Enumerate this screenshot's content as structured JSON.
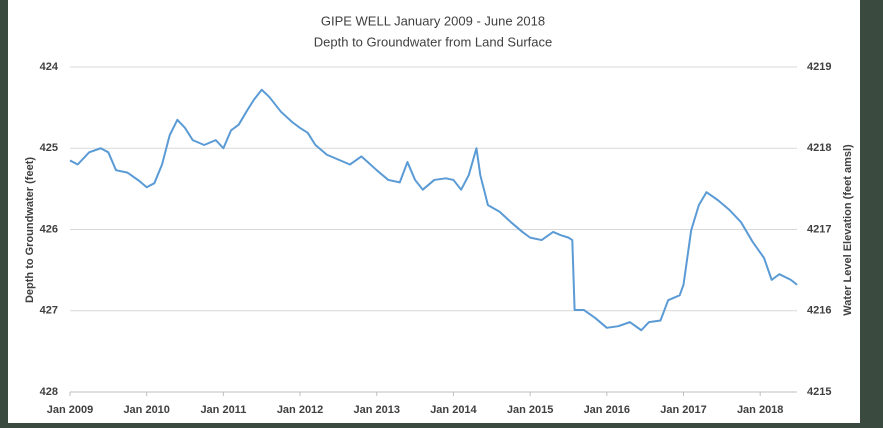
{
  "chart_data": {
    "type": "line",
    "title": "GIPE WELL  January 2009 - June 2018",
    "subtitle": "Depth to Groundwater from Land Surface",
    "y_label": "Depth to Groundwater (feet)",
    "y2_label": "Water Level Elevation (feet amsl)",
    "xlim": [
      2009,
      2018.48
    ],
    "xticks": [
      {
        "value": 2009,
        "label": "Jan 2009"
      },
      {
        "value": 2010,
        "label": "Jan 2010"
      },
      {
        "value": 2011,
        "label": "Jan 2011"
      },
      {
        "value": 2012,
        "label": "Jan 2012"
      },
      {
        "value": 2013,
        "label": "Jan 2013"
      },
      {
        "value": 2014,
        "label": "Jan 2014"
      },
      {
        "value": 2015,
        "label": "Jan 2015"
      },
      {
        "value": 2016,
        "label": "Jan 2016"
      },
      {
        "value": 2017,
        "label": "Jan 2017"
      },
      {
        "value": 2018,
        "label": "Jan 2018"
      }
    ],
    "ylim": [
      428,
      424
    ],
    "yticks": [
      424,
      425,
      426,
      427,
      428
    ],
    "y2lim": [
      4215,
      4219
    ],
    "y2ticks": [
      4215,
      4216,
      4217,
      4218,
      4219
    ],
    "grid": true,
    "series": [
      {
        "color": "#5b9bd5",
        "x": [
          2009.0,
          2009.1,
          2009.25,
          2009.4,
          2009.5,
          2009.6,
          2009.75,
          2009.9,
          2010.0,
          2010.1,
          2010.2,
          2010.3,
          2010.4,
          2010.5,
          2010.6,
          2010.75,
          2010.9,
          2011.0,
          2011.1,
          2011.2,
          2011.3,
          2011.4,
          2011.5,
          2011.6,
          2011.75,
          2011.9,
          2012.0,
          2012.1,
          2012.2,
          2012.35,
          2012.5,
          2012.65,
          2012.8,
          2013.0,
          2013.15,
          2013.3,
          2013.4,
          2013.5,
          2013.6,
          2013.75,
          2013.9,
          2014.0,
          2014.1,
          2014.2,
          2014.3,
          2014.35,
          2014.45,
          2014.6,
          2014.75,
          2014.9,
          2015.0,
          2015.15,
          2015.3,
          2015.4,
          2015.5,
          2015.55,
          2015.58,
          2015.7,
          2015.85,
          2016.0,
          2016.15,
          2016.3,
          2016.45,
          2016.55,
          2016.7,
          2016.8,
          2016.95,
          2017.0,
          2017.1,
          2017.2,
          2017.3,
          2017.45,
          2017.6,
          2017.75,
          2017.9,
          2018.05,
          2018.15,
          2018.25,
          2018.4,
          2018.48
        ],
        "values": [
          425.15,
          425.2,
          425.05,
          425.0,
          425.05,
          425.27,
          425.3,
          425.4,
          425.48,
          425.43,
          425.2,
          424.84,
          424.65,
          424.75,
          424.9,
          424.96,
          424.9,
          425.0,
          424.78,
          424.71,
          424.55,
          424.4,
          424.28,
          424.37,
          424.55,
          424.68,
          424.75,
          424.81,
          424.96,
          425.08,
          425.14,
          425.2,
          425.1,
          425.27,
          425.39,
          425.42,
          425.17,
          425.39,
          425.51,
          425.39,
          425.37,
          425.39,
          425.51,
          425.33,
          425.0,
          425.33,
          425.7,
          425.78,
          425.91,
          426.03,
          426.1,
          426.13,
          426.03,
          426.07,
          426.1,
          426.13,
          426.99,
          426.99,
          427.09,
          427.21,
          427.19,
          427.14,
          427.24,
          427.14,
          427.12,
          426.87,
          426.81,
          426.68,
          426.01,
          425.7,
          425.54,
          425.64,
          425.76,
          425.91,
          426.15,
          426.35,
          426.62,
          426.55,
          426.62,
          426.68
        ]
      }
    ]
  }
}
